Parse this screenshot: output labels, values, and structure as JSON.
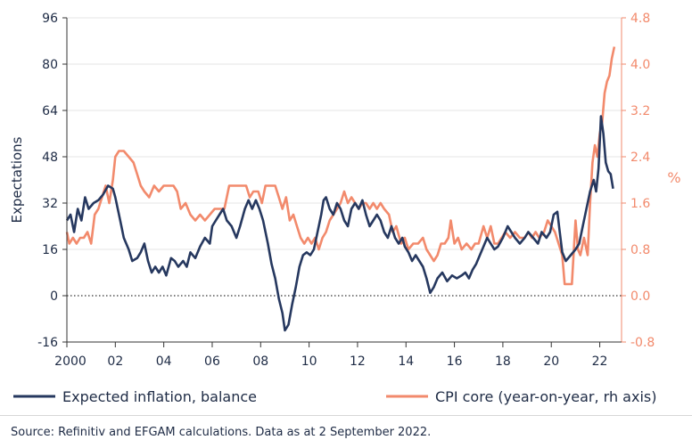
{
  "chart_data": {
    "type": "line",
    "title": "",
    "xlabel": "",
    "ylabel": "Expectations",
    "y2label": "%",
    "x_range": [
      2000,
      2022.9
    ],
    "ylim": [
      -16,
      96
    ],
    "y2lim": [
      -0.8,
      4.8
    ],
    "x_ticks": [
      {
        "value": 2000,
        "label": "2000"
      },
      {
        "value": 2002,
        "label": "02"
      },
      {
        "value": 2004,
        "label": "04"
      },
      {
        "value": 2006,
        "label": "06"
      },
      {
        "value": 2008,
        "label": "08"
      },
      {
        "value": 2010,
        "label": "10"
      },
      {
        "value": 2012,
        "label": "12"
      },
      {
        "value": 2014,
        "label": "14"
      },
      {
        "value": 2016,
        "label": "16"
      },
      {
        "value": 2018,
        "label": "18"
      },
      {
        "value": 2020,
        "label": "20"
      },
      {
        "value": 2022,
        "label": "22"
      }
    ],
    "y_ticks": [
      "96",
      "80",
      "64",
      "48",
      "32",
      "16",
      "0",
      "-16"
    ],
    "y2_ticks": [
      "4.8",
      "4.0",
      "3.2",
      "2.4",
      "1.6",
      "0.8",
      "0.0",
      "-0.8"
    ],
    "y_tick_values": [
      96,
      80,
      64,
      48,
      32,
      16,
      0,
      -16
    ],
    "zero_line": true,
    "grid": "horizontal",
    "legend_position": "bottom",
    "colors": {
      "expected": "#26385f",
      "cpi": "#f28a6c"
    },
    "series": [
      {
        "name": "Expected inflation, balance",
        "axis": "left",
        "color": "#26385f",
        "points": [
          [
            2000.0,
            26
          ],
          [
            2000.15,
            28
          ],
          [
            2000.3,
            22
          ],
          [
            2000.45,
            30
          ],
          [
            2000.6,
            26
          ],
          [
            2000.75,
            34
          ],
          [
            2000.9,
            30
          ],
          [
            2001.1,
            32
          ],
          [
            2001.3,
            33
          ],
          [
            2001.5,
            35
          ],
          [
            2001.7,
            38
          ],
          [
            2001.9,
            37
          ],
          [
            2002.0,
            34
          ],
          [
            2002.2,
            26
          ],
          [
            2002.35,
            20
          ],
          [
            2002.55,
            16
          ],
          [
            2002.7,
            12
          ],
          [
            2002.9,
            13
          ],
          [
            2003.05,
            15
          ],
          [
            2003.2,
            18
          ],
          [
            2003.35,
            12
          ],
          [
            2003.5,
            8
          ],
          [
            2003.65,
            10
          ],
          [
            2003.8,
            8
          ],
          [
            2003.95,
            10
          ],
          [
            2004.1,
            7
          ],
          [
            2004.3,
            13
          ],
          [
            2004.45,
            12
          ],
          [
            2004.6,
            10
          ],
          [
            2004.8,
            12
          ],
          [
            2004.95,
            10
          ],
          [
            2005.1,
            15
          ],
          [
            2005.3,
            13
          ],
          [
            2005.5,
            17
          ],
          [
            2005.7,
            20
          ],
          [
            2005.9,
            18
          ],
          [
            2006.0,
            24
          ],
          [
            2006.15,
            26
          ],
          [
            2006.3,
            28
          ],
          [
            2006.45,
            30
          ],
          [
            2006.6,
            26
          ],
          [
            2006.8,
            24
          ],
          [
            2007.0,
            20
          ],
          [
            2007.15,
            24
          ],
          [
            2007.35,
            30
          ],
          [
            2007.5,
            33
          ],
          [
            2007.65,
            30
          ],
          [
            2007.8,
            33
          ],
          [
            2007.95,
            30
          ],
          [
            2008.1,
            26
          ],
          [
            2008.2,
            22
          ],
          [
            2008.3,
            18
          ],
          [
            2008.45,
            11
          ],
          [
            2008.6,
            6
          ],
          [
            2008.75,
            -1
          ],
          [
            2008.9,
            -6
          ],
          [
            2009.0,
            -12
          ],
          [
            2009.15,
            -10
          ],
          [
            2009.3,
            -3
          ],
          [
            2009.45,
            3
          ],
          [
            2009.6,
            10
          ],
          [
            2009.75,
            14
          ],
          [
            2009.9,
            15
          ],
          [
            2010.05,
            14
          ],
          [
            2010.2,
            16
          ],
          [
            2010.35,
            22
          ],
          [
            2010.5,
            28
          ],
          [
            2010.6,
            33
          ],
          [
            2010.7,
            34
          ],
          [
            2010.85,
            30
          ],
          [
            2011.0,
            28
          ],
          [
            2011.15,
            32
          ],
          [
            2011.3,
            30
          ],
          [
            2011.45,
            26
          ],
          [
            2011.6,
            24
          ],
          [
            2011.75,
            30
          ],
          [
            2011.9,
            32
          ],
          [
            2012.05,
            30
          ],
          [
            2012.2,
            33
          ],
          [
            2012.35,
            28
          ],
          [
            2012.5,
            24
          ],
          [
            2012.65,
            26
          ],
          [
            2012.8,
            28
          ],
          [
            2012.95,
            26
          ],
          [
            2013.1,
            22
          ],
          [
            2013.25,
            20
          ],
          [
            2013.4,
            24
          ],
          [
            2013.55,
            20
          ],
          [
            2013.7,
            18
          ],
          [
            2013.85,
            20
          ],
          [
            2013.95,
            17
          ],
          [
            2014.1,
            15
          ],
          [
            2014.25,
            12
          ],
          [
            2014.4,
            14
          ],
          [
            2014.55,
            12
          ],
          [
            2014.7,
            10
          ],
          [
            2014.85,
            6
          ],
          [
            2015.0,
            1
          ],
          [
            2015.15,
            3
          ],
          [
            2015.3,
            6
          ],
          [
            2015.5,
            8
          ],
          [
            2015.7,
            5
          ],
          [
            2015.9,
            7
          ],
          [
            2016.1,
            6
          ],
          [
            2016.3,
            7
          ],
          [
            2016.45,
            8
          ],
          [
            2016.6,
            6
          ],
          [
            2016.75,
            9
          ],
          [
            2016.9,
            11
          ],
          [
            2017.05,
            14
          ],
          [
            2017.2,
            17
          ],
          [
            2017.35,
            20
          ],
          [
            2017.5,
            18
          ],
          [
            2017.65,
            16
          ],
          [
            2017.8,
            17
          ],
          [
            2018.0,
            20
          ],
          [
            2018.2,
            24
          ],
          [
            2018.35,
            22
          ],
          [
            2018.5,
            20
          ],
          [
            2018.7,
            18
          ],
          [
            2018.9,
            20
          ],
          [
            2019.05,
            22
          ],
          [
            2019.25,
            20
          ],
          [
            2019.45,
            18
          ],
          [
            2019.6,
            22
          ],
          [
            2019.8,
            20
          ],
          [
            2019.95,
            22
          ],
          [
            2020.1,
            28
          ],
          [
            2020.25,
            29
          ],
          [
            2020.35,
            22
          ],
          [
            2020.45,
            15
          ],
          [
            2020.6,
            12
          ],
          [
            2020.8,
            14
          ],
          [
            2021.0,
            16
          ],
          [
            2021.15,
            18
          ],
          [
            2021.3,
            24
          ],
          [
            2021.45,
            30
          ],
          [
            2021.6,
            36
          ],
          [
            2021.75,
            40
          ],
          [
            2021.85,
            36
          ],
          [
            2021.95,
            44
          ],
          [
            2022.05,
            62
          ],
          [
            2022.15,
            56
          ],
          [
            2022.25,
            46
          ],
          [
            2022.35,
            43
          ],
          [
            2022.45,
            42
          ],
          [
            2022.55,
            37
          ]
        ]
      },
      {
        "name": "CPI core (year-on-year, rh axis)",
        "axis": "right",
        "color": "#f28a6c",
        "points": [
          [
            2000.0,
            1.1
          ],
          [
            2000.1,
            0.9
          ],
          [
            2000.25,
            1.0
          ],
          [
            2000.4,
            0.9
          ],
          [
            2000.55,
            1.0
          ],
          [
            2000.7,
            1.0
          ],
          [
            2000.85,
            1.1
          ],
          [
            2001.0,
            0.9
          ],
          [
            2001.15,
            1.4
          ],
          [
            2001.3,
            1.5
          ],
          [
            2001.45,
            1.7
          ],
          [
            2001.6,
            1.9
          ],
          [
            2001.75,
            1.6
          ],
          [
            2001.9,
            2.0
          ],
          [
            2002.0,
            2.4
          ],
          [
            2002.15,
            2.5
          ],
          [
            2002.35,
            2.5
          ],
          [
            2002.55,
            2.4
          ],
          [
            2002.75,
            2.3
          ],
          [
            2002.9,
            2.1
          ],
          [
            2003.05,
            1.9
          ],
          [
            2003.2,
            1.8
          ],
          [
            2003.4,
            1.7
          ],
          [
            2003.6,
            1.9
          ],
          [
            2003.8,
            1.8
          ],
          [
            2004.0,
            1.9
          ],
          [
            2004.2,
            1.9
          ],
          [
            2004.4,
            1.9
          ],
          [
            2004.55,
            1.8
          ],
          [
            2004.7,
            1.5
          ],
          [
            2004.9,
            1.6
          ],
          [
            2005.1,
            1.4
          ],
          [
            2005.3,
            1.3
          ],
          [
            2005.5,
            1.4
          ],
          [
            2005.7,
            1.3
          ],
          [
            2005.9,
            1.4
          ],
          [
            2006.1,
            1.5
          ],
          [
            2006.3,
            1.5
          ],
          [
            2006.5,
            1.5
          ],
          [
            2006.7,
            1.9
          ],
          [
            2006.85,
            1.9
          ],
          [
            2007.0,
            1.9
          ],
          [
            2007.2,
            1.9
          ],
          [
            2007.4,
            1.9
          ],
          [
            2007.55,
            1.7
          ],
          [
            2007.7,
            1.8
          ],
          [
            2007.9,
            1.8
          ],
          [
            2008.05,
            1.6
          ],
          [
            2008.2,
            1.9
          ],
          [
            2008.4,
            1.9
          ],
          [
            2008.6,
            1.9
          ],
          [
            2008.75,
            1.7
          ],
          [
            2008.9,
            1.5
          ],
          [
            2009.05,
            1.7
          ],
          [
            2009.2,
            1.3
          ],
          [
            2009.35,
            1.4
          ],
          [
            2009.5,
            1.2
          ],
          [
            2009.65,
            1.0
          ],
          [
            2009.8,
            0.9
          ],
          [
            2009.95,
            1.0
          ],
          [
            2010.1,
            0.9
          ],
          [
            2010.25,
            1.0
          ],
          [
            2010.4,
            0.8
          ],
          [
            2010.55,
            1.0
          ],
          [
            2010.7,
            1.1
          ],
          [
            2010.85,
            1.3
          ],
          [
            2011.0,
            1.4
          ],
          [
            2011.15,
            1.5
          ],
          [
            2011.3,
            1.6
          ],
          [
            2011.45,
            1.8
          ],
          [
            2011.6,
            1.6
          ],
          [
            2011.75,
            1.7
          ],
          [
            2011.9,
            1.6
          ],
          [
            2012.05,
            1.5
          ],
          [
            2012.2,
            1.6
          ],
          [
            2012.35,
            1.6
          ],
          [
            2012.5,
            1.5
          ],
          [
            2012.65,
            1.6
          ],
          [
            2012.8,
            1.5
          ],
          [
            2012.95,
            1.6
          ],
          [
            2013.1,
            1.5
          ],
          [
            2013.3,
            1.4
          ],
          [
            2013.45,
            1.1
          ],
          [
            2013.6,
            1.2
          ],
          [
            2013.8,
            0.9
          ],
          [
            2013.95,
            1.0
          ],
          [
            2014.1,
            0.8
          ],
          [
            2014.3,
            0.9
          ],
          [
            2014.5,
            0.9
          ],
          [
            2014.7,
            1.0
          ],
          [
            2014.85,
            0.8
          ],
          [
            2015.0,
            0.7
          ],
          [
            2015.15,
            0.6
          ],
          [
            2015.3,
            0.7
          ],
          [
            2015.45,
            0.9
          ],
          [
            2015.6,
            0.9
          ],
          [
            2015.75,
            1.0
          ],
          [
            2015.85,
            1.3
          ],
          [
            2016.0,
            0.9
          ],
          [
            2016.15,
            1.0
          ],
          [
            2016.3,
            0.8
          ],
          [
            2016.5,
            0.9
          ],
          [
            2016.7,
            0.8
          ],
          [
            2016.85,
            0.9
          ],
          [
            2017.0,
            0.9
          ],
          [
            2017.2,
            1.2
          ],
          [
            2017.35,
            1.0
          ],
          [
            2017.5,
            1.2
          ],
          [
            2017.65,
            0.9
          ],
          [
            2017.8,
            0.9
          ],
          [
            2017.95,
            1.0
          ],
          [
            2018.1,
            1.1
          ],
          [
            2018.3,
            1.0
          ],
          [
            2018.5,
            1.1
          ],
          [
            2018.7,
            1.0
          ],
          [
            2018.9,
            1.0
          ],
          [
            2019.05,
            1.1
          ],
          [
            2019.2,
            1.0
          ],
          [
            2019.35,
            1.1
          ],
          [
            2019.5,
            1.0
          ],
          [
            2019.7,
            1.1
          ],
          [
            2019.85,
            1.3
          ],
          [
            2020.0,
            1.2
          ],
          [
            2020.15,
            1.1
          ],
          [
            2020.3,
            0.9
          ],
          [
            2020.45,
            0.7
          ],
          [
            2020.55,
            0.2
          ],
          [
            2020.7,
            0.2
          ],
          [
            2020.85,
            0.2
          ],
          [
            2021.0,
            1.3
          ],
          [
            2021.1,
            0.8
          ],
          [
            2021.2,
            0.7
          ],
          [
            2021.35,
            1.0
          ],
          [
            2021.5,
            0.7
          ],
          [
            2021.6,
            1.6
          ],
          [
            2021.7,
            2.3
          ],
          [
            2021.8,
            2.6
          ],
          [
            2021.9,
            2.4
          ],
          [
            2022.0,
            2.8
          ],
          [
            2022.1,
            3.0
          ],
          [
            2022.2,
            3.5
          ],
          [
            2022.3,
            3.7
          ],
          [
            2022.4,
            3.8
          ],
          [
            2022.5,
            4.1
          ],
          [
            2022.6,
            4.3
          ]
        ]
      }
    ]
  },
  "source": "Source: Refinitiv and EFGAM calculations. Data as at 2 September 2022."
}
